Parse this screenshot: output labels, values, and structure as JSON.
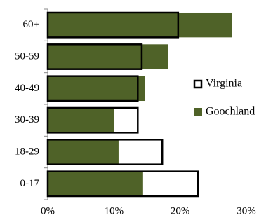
{
  "chart_data": {
    "type": "bar",
    "orientation": "horizontal",
    "categories": [
      "60+",
      "50-59",
      "40-49",
      "30-39",
      "18-29",
      "0-17"
    ],
    "series": [
      {
        "name": "Virginia",
        "color": "#000000",
        "values": [
          19.7,
          14.2,
          13.6,
          13.6,
          17.3,
          22.7
        ]
      },
      {
        "name": "Goochland",
        "color": "#4f6228",
        "values": [
          27.8,
          18.2,
          14.7,
          10.0,
          10.7,
          14.4
        ]
      }
    ],
    "xlim": [
      0,
      30
    ],
    "xticks": [
      {
        "value": 0,
        "label": "0%"
      },
      {
        "value": 10,
        "label": "10%"
      },
      {
        "value": 20,
        "label": "20%"
      },
      {
        "value": 30,
        "label": "30%"
      }
    ],
    "grid": false,
    "legend": "right"
  }
}
